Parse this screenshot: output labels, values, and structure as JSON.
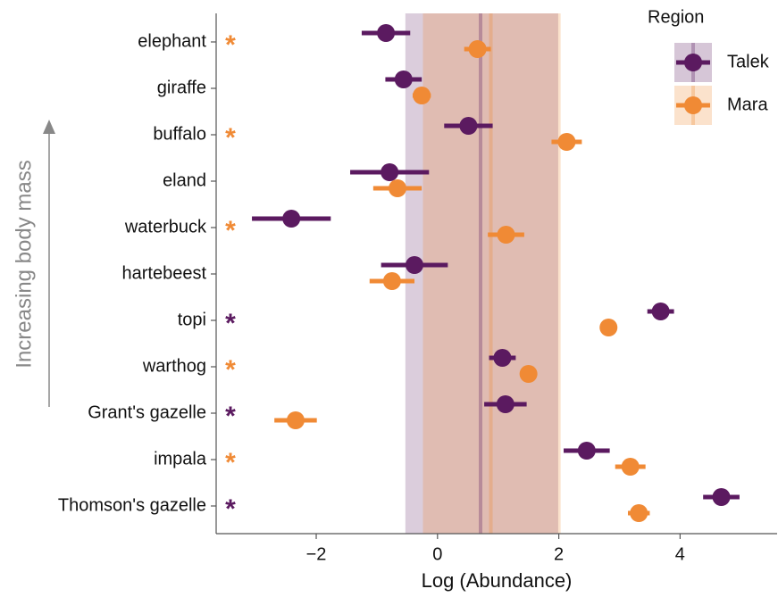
{
  "chart_data": {
    "type": "dot-errorbar",
    "x_label": "Log (Abundance)",
    "y_label": "Increasing body mass",
    "legend_title": "Region",
    "categories": [
      "elephant",
      "giraffe",
      "buffalo",
      "eland",
      "waterbuck",
      "hartebeest",
      "topi",
      "warthog",
      "Grant's gazelle",
      "impala",
      "Thomson's gazelle"
    ],
    "stars": [
      "*",
      null,
      "*",
      null,
      "*",
      null,
      "*",
      "*",
      "*",
      "*",
      "*"
    ],
    "star_colors": [
      "#f08a35",
      null,
      "#f08a35",
      null,
      "#f08a35",
      null,
      "#5b1a60",
      "#f08a35",
      "#5b1a60",
      "#f08a35",
      "#5b1a60"
    ],
    "series": [
      {
        "name": "Talek",
        "color": "#5b1a60",
        "values": [
          -0.85,
          -0.56,
          0.51,
          -0.79,
          -2.41,
          -0.38,
          3.68,
          1.07,
          1.12,
          2.46,
          4.68
        ],
        "errors": [
          0.4,
          0.3,
          0.4,
          0.65,
          0.65,
          0.55,
          0.22,
          0.22,
          0.35,
          0.38,
          0.3
        ],
        "mean": 0.71,
        "band": [
          -0.53,
          1.99
        ]
      },
      {
        "name": "Mara",
        "color": "#f08a35",
        "values": [
          0.66,
          -0.26,
          2.13,
          -0.66,
          1.13,
          -0.75,
          2.82,
          1.5,
          -2.34,
          3.18,
          3.32
        ],
        "errors": [
          0.22,
          0.15,
          0.25,
          0.4,
          0.3,
          0.37,
          0.05,
          0.05,
          0.35,
          0.25,
          0.18
        ],
        "mean": 0.88,
        "band": [
          -0.24,
          2.03
        ]
      }
    ],
    "xlim": [
      -3.65,
      5.6
    ],
    "xticks": [
      {
        "value": -2,
        "label": "−2"
      },
      0,
      2,
      4
    ]
  }
}
